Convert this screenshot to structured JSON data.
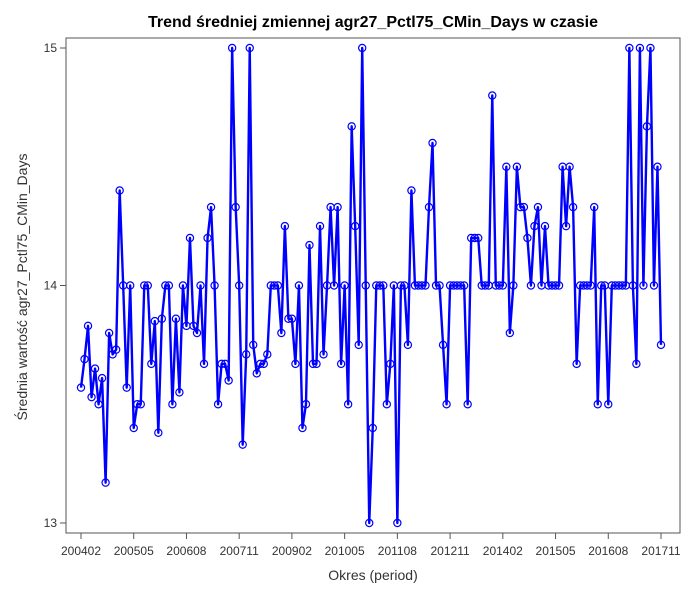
{
  "chart_data": {
    "type": "line",
    "title": "Trend średniej zmiennej agr27_Pctl75_CMin_Days w czasie",
    "xlabel": "Okres (period)",
    "ylabel": "Średnia wartość agr27_Pctl75_CMin_Days",
    "x_tick_labels": [
      "200402",
      "200505",
      "200608",
      "200711",
      "200902",
      "201005",
      "201108",
      "201211",
      "201402",
      "201505",
      "201608",
      "201711"
    ],
    "y_tick_labels": [
      "13",
      "14",
      "15"
    ],
    "ylim": [
      13,
      15
    ],
    "grid": false,
    "legend": "none",
    "series": [
      {
        "color": "#0000ff",
        "values": [
          13.57,
          13.69,
          13.83,
          13.53,
          13.65,
          13.5,
          13.61,
          13.17,
          13.8,
          13.71,
          13.73,
          14.4,
          14.0,
          13.57,
          14.0,
          13.4,
          13.5,
          13.5,
          14.0,
          14.0,
          13.67,
          13.85,
          13.38,
          13.86,
          14.0,
          14.0,
          13.5,
          13.86,
          13.55,
          14.0,
          13.83,
          14.2,
          13.83,
          13.8,
          14.0,
          13.67,
          14.2,
          14.33,
          14.0,
          13.5,
          13.67,
          13.67,
          13.6,
          15.0,
          14.33,
          14.0,
          13.33,
          13.71,
          15.0,
          13.75,
          13.63,
          13.67,
          13.67,
          13.71,
          14.0,
          14.0,
          14.0,
          13.8,
          14.25,
          13.86,
          13.86,
          13.67,
          14.0,
          13.4,
          13.5,
          14.17,
          13.67,
          13.67,
          14.25,
          13.71,
          14.0,
          14.33,
          14.0,
          14.33,
          13.67,
          14.0,
          13.5,
          14.67,
          14.25,
          13.75,
          15.0,
          14.0,
          13.0,
          13.4,
          14.0,
          14.0,
          14.0,
          13.5,
          13.67,
          14.0,
          13.0,
          14.0,
          14.0,
          13.75,
          14.4,
          14.0,
          14.0,
          14.0,
          14.0,
          14.33,
          14.6,
          14.0,
          14.0,
          13.75,
          13.5,
          14.0,
          14.0,
          14.0,
          14.0,
          14.0,
          13.5,
          14.2,
          14.2,
          14.2,
          14.0,
          14.0,
          14.0,
          14.8,
          14.0,
          14.0,
          14.0,
          14.5,
          13.8,
          14.0,
          14.5,
          14.33,
          14.33,
          14.2,
          14.0,
          14.25,
          14.33,
          14.0,
          14.25,
          14.0,
          14.0,
          14.0,
          14.0,
          14.5,
          14.25,
          14.5,
          14.33,
          13.67,
          14.0,
          14.0,
          14.0,
          14.0,
          14.33,
          13.5,
          14.0,
          14.0,
          13.5,
          14.0,
          14.0,
          14.0,
          14.0,
          14.0,
          15.0,
          14.0,
          13.67,
          15.0,
          14.0,
          14.67,
          15.0,
          14.0,
          14.5,
          13.75
        ]
      }
    ]
  }
}
